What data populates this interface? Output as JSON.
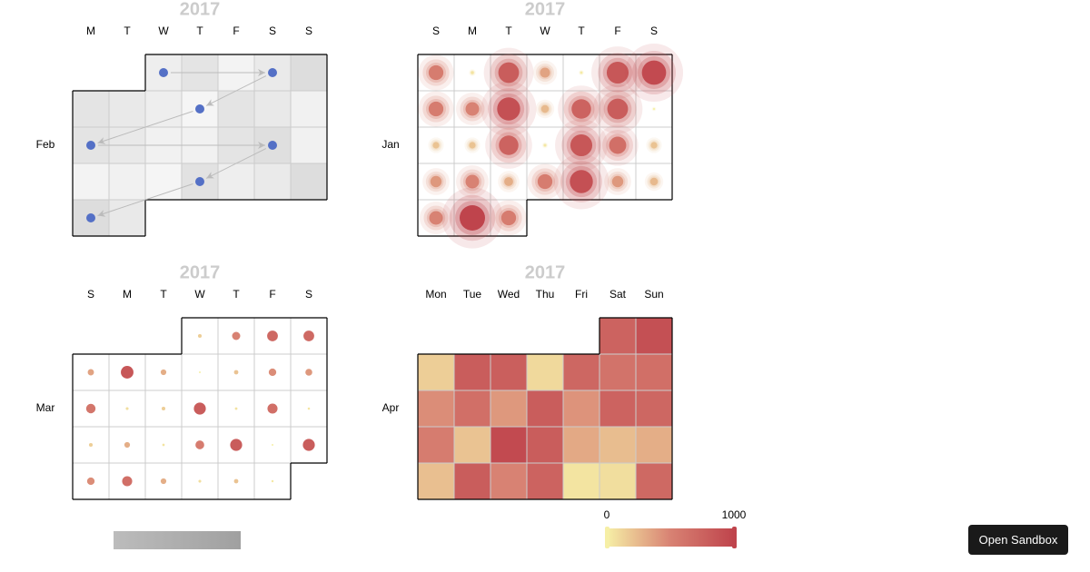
{
  "chart_data": [
    {
      "type": "calendar-graph",
      "title": "2017",
      "month": "Feb",
      "weekdays": [
        "M",
        "T",
        "W",
        "T",
        "F",
        "S",
        "S"
      ],
      "first_weekday_index": 2,
      "values": [
        300,
        600,
        150,
        400,
        800,
        600,
        450,
        300,
        100,
        600,
        450,
        200,
        600,
        450,
        200,
        200,
        600,
        750,
        200,
        150,
        200,
        100,
        650,
        300,
        400,
        800,
        800,
        450
      ],
      "colors": [
        "#f8f8f8",
        "#d6d6d6"
      ],
      "node_color": "#5470c6",
      "graph_nodes": [
        1,
        4,
        9,
        13,
        18,
        23,
        27
      ]
    },
    {
      "type": "calendar-effect-scatter",
      "title": "2017",
      "month": "Jan",
      "weekdays": [
        "S",
        "M",
        "T",
        "W",
        "T",
        "F",
        "S"
      ],
      "first_weekday_index": 0,
      "values": [
        550,
        50,
        800,
        350,
        20,
        850,
        950,
        550,
        500,
        900,
        250,
        750,
        800,
        0,
        200,
        200,
        750,
        30,
        850,
        650,
        200,
        400,
        500,
        300,
        550,
        900,
        400,
        250,
        500,
        1000,
        550
      ]
    },
    {
      "type": "calendar-scatter",
      "title": "2017",
      "month": "Mar",
      "weekdays": [
        "S",
        "M",
        "T",
        "W",
        "T",
        "F",
        "S"
      ],
      "first_weekday_index": 3,
      "values": [
        150,
        500,
        700,
        700,
        350,
        850,
        300,
        0,
        200,
        450,
        400,
        600,
        80,
        150,
        800,
        60,
        650,
        40,
        150,
        300,
        50,
        550,
        800,
        0,
        800,
        450,
        650,
        300,
        80,
        200,
        30
      ]
    },
    {
      "type": "calendar-heatmap",
      "title": "2017",
      "month": "Apr",
      "weekdays": [
        "Mon",
        "Tue",
        "Wed",
        "Thu",
        "Fri",
        "Sat",
        "Sun"
      ],
      "first_weekday_index": 5,
      "values": [
        750,
        900,
        150,
        800,
        780,
        100,
        720,
        620,
        650,
        450,
        650,
        400,
        800,
        420,
        750,
        720,
        550,
        200,
        950,
        800,
        320,
        230,
        300,
        220,
        800,
        500,
        750,
        50,
        80,
        700
      ]
    }
  ],
  "visual_map": {
    "min": 0,
    "max": 1000,
    "colors": [
      "#f6efa6",
      "#d88273",
      "#bf444c"
    ]
  },
  "gray_visual_map": {
    "colors": [
      "#bcbcbc",
      "#a0a0a0"
    ]
  },
  "button": "Open Sandbox"
}
